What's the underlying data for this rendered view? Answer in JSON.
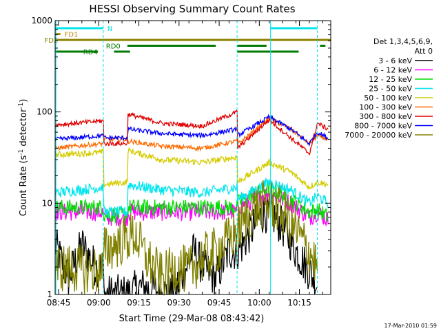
{
  "chart_data": {
    "type": "line",
    "title": "HESSI Observing Summary Count Rates",
    "xlabel": "Start Time (29-Mar-08 08:43:42)",
    "ylabel_main": "Count Rate (s",
    "ylabel_sup1": "-1",
    "ylabel_mid": " detector",
    "ylabel_sup2": "-1",
    "ylabel_end": ")",
    "footer": "17-Mar-2010 01:59",
    "legend_header_1": "Det 1,3,4,5,6,9,",
    "legend_header_2": "Att 0",
    "y_scale": "log",
    "ylim": [
      1,
      1000
    ],
    "xlim_minutes": [
      0,
      103
    ],
    "x_ticks": [
      {
        "m": 1.3,
        "label": "08:45"
      },
      {
        "m": 16.3,
        "label": "09:00"
      },
      {
        "m": 31.3,
        "label": "09:15"
      },
      {
        "m": 46.3,
        "label": "09:30"
      },
      {
        "m": 61.3,
        "label": "09:45"
      },
      {
        "m": 76.3,
        "label": "10:00"
      },
      {
        "m": 91.3,
        "label": "10:15"
      }
    ],
    "y_ticks": [
      {
        "v": 1,
        "label": "1"
      },
      {
        "v": 10,
        "label": "10"
      },
      {
        "v": 100,
        "label": "100"
      },
      {
        "v": 1000,
        "label": "1000"
      }
    ],
    "grid": false,
    "vertical_markers": [
      {
        "m": 0.3,
        "style": "solid"
      },
      {
        "m": 18.0,
        "style": "dashed"
      },
      {
        "m": 68.0,
        "style": "dashed"
      },
      {
        "m": 80.5,
        "style": "solid"
      },
      {
        "m": 98.0,
        "style": "dashed"
      }
    ],
    "flags": [
      {
        "label": "N",
        "label_m": 19.5,
        "level": 0,
        "color": "#00e5ee",
        "segments": [
          [
            0,
            18
          ],
          [
            80.5,
            98
          ]
        ]
      },
      {
        "label": "FD1",
        "label_m": 3.5,
        "level": 1,
        "color": "#b8860b",
        "segments": [
          [
            0,
            2
          ]
        ]
      },
      {
        "label": "FD2",
        "label_m": -4.0,
        "level": 2,
        "color": "#8b8000",
        "segments": [
          [
            0,
            103
          ]
        ]
      },
      {
        "label": "RD0",
        "label_m": 19.0,
        "level": 3,
        "color": "#007a00",
        "segments": [
          [
            27,
            60
          ],
          [
            68,
            79
          ],
          [
            99,
            101
          ]
        ]
      },
      {
        "label": "RD4",
        "label_m": 10.5,
        "level": 4,
        "color": "#007a00",
        "segments": [
          [
            0,
            16
          ],
          [
            22,
            28
          ],
          [
            68,
            91
          ]
        ]
      }
    ],
    "series": [
      {
        "name": "3 - 6 keV",
        "color": "#000000"
      },
      {
        "name": "6 - 12 keV",
        "color": "#ff00ff"
      },
      {
        "name": "12 - 25 keV",
        "color": "#00dd00"
      },
      {
        "name": "25 - 50 keV",
        "color": "#00e5ee"
      },
      {
        "name": "50 - 100 keV",
        "color": "#d4cc00"
      },
      {
        "name": "100 - 300 keV",
        "color": "#ff6a00"
      },
      {
        "name": "300 - 800 keV",
        "color": "#e00000"
      },
      {
        "name": "800 - 7000 keV",
        "color": "#0000ff"
      },
      {
        "name": "7000 - 20000 keV",
        "color": "#808000"
      }
    ],
    "curves": [
      {
        "color": "#000000",
        "noise": 0.45,
        "points": [
          [
            0,
            3.5
          ],
          [
            5,
            1.5
          ],
          [
            10,
            3.5
          ],
          [
            15,
            2
          ],
          [
            18,
            2
          ],
          [
            18.1,
            1
          ],
          [
            27,
            1
          ],
          [
            32,
            1.2
          ],
          [
            44,
            1
          ],
          [
            52,
            3
          ],
          [
            55,
            2
          ],
          [
            60,
            1.5
          ],
          [
            65,
            3
          ],
          [
            68,
            3
          ],
          [
            70,
            3.5
          ],
          [
            75,
            6
          ],
          [
            78,
            8
          ],
          [
            82,
            7
          ],
          [
            86,
            5
          ],
          [
            90,
            3
          ],
          [
            94,
            2
          ],
          [
            98,
            1.3
          ]
        ]
      },
      {
        "color": "#ff00ff",
        "noise": 0.2,
        "points": [
          [
            0,
            8
          ],
          [
            18,
            8
          ],
          [
            18.1,
            7
          ],
          [
            27,
            7
          ],
          [
            27.1,
            8
          ],
          [
            60,
            8
          ],
          [
            68,
            8
          ],
          [
            68.1,
            9
          ],
          [
            80,
            13
          ],
          [
            88,
            10
          ],
          [
            95,
            7
          ],
          [
            98,
            8
          ],
          [
            102,
            6.5
          ]
        ]
      },
      {
        "color": "#00dd00",
        "noise": 0.18,
        "points": [
          [
            0,
            9
          ],
          [
            18,
            9
          ],
          [
            18.1,
            7.5
          ],
          [
            27,
            7.5
          ],
          [
            27.1,
            9
          ],
          [
            60,
            9
          ],
          [
            68,
            9
          ],
          [
            68.1,
            10
          ],
          [
            80,
            15
          ],
          [
            88,
            11
          ],
          [
            95,
            8
          ],
          [
            98,
            8.5
          ],
          [
            102,
            7
          ]
        ]
      },
      {
        "color": "#00e5ee",
        "noise": 0.12,
        "points": [
          [
            0,
            13
          ],
          [
            18,
            15
          ],
          [
            18.1,
            8
          ],
          [
            27,
            8
          ],
          [
            27.1,
            16
          ],
          [
            40,
            14
          ],
          [
            55,
            13
          ],
          [
            68,
            15
          ],
          [
            68.1,
            11
          ],
          [
            80,
            17
          ],
          [
            88,
            14
          ],
          [
            95,
            10
          ],
          [
            98,
            12
          ],
          [
            102,
            10
          ]
        ]
      },
      {
        "color": "#d4cc00",
        "noise": 0.07,
        "points": [
          [
            0,
            34
          ],
          [
            18,
            36
          ],
          [
            18.1,
            16
          ],
          [
            27,
            17
          ],
          [
            27.1,
            38
          ],
          [
            40,
            30
          ],
          [
            55,
            28
          ],
          [
            68,
            32
          ],
          [
            68.1,
            17
          ],
          [
            80,
            28
          ],
          [
            88,
            22
          ],
          [
            95,
            15
          ],
          [
            98,
            17
          ],
          [
            102,
            16
          ]
        ]
      },
      {
        "color": "#ff6a00",
        "noise": 0.05,
        "points": [
          [
            0,
            40
          ],
          [
            18,
            45
          ],
          [
            18.1,
            50
          ],
          [
            27,
            50
          ],
          [
            27.1,
            48
          ],
          [
            40,
            42
          ],
          [
            55,
            40
          ],
          [
            68,
            48
          ],
          [
            68.1,
            44
          ],
          [
            80,
            85
          ],
          [
            88,
            65
          ],
          [
            95,
            45
          ],
          [
            98,
            55
          ],
          [
            102,
            50
          ]
        ]
      },
      {
        "color": "#0000ff",
        "noise": 0.05,
        "points": [
          [
            0,
            50
          ],
          [
            18,
            55
          ],
          [
            18.1,
            52
          ],
          [
            27,
            52
          ],
          [
            27.1,
            65
          ],
          [
            40,
            58
          ],
          [
            55,
            55
          ],
          [
            68,
            65
          ],
          [
            68.1,
            55
          ],
          [
            80,
            88
          ],
          [
            88,
            65
          ],
          [
            95,
            45
          ],
          [
            98,
            60
          ],
          [
            102,
            52
          ]
        ]
      },
      {
        "color": "#e00000",
        "noise": 0.05,
        "points": [
          [
            0,
            72
          ],
          [
            18,
            80
          ],
          [
            18.1,
            45
          ],
          [
            27,
            45
          ],
          [
            27.1,
            95
          ],
          [
            40,
            75
          ],
          [
            55,
            70
          ],
          [
            68,
            100
          ],
          [
            68.1,
            40
          ],
          [
            80,
            82
          ],
          [
            88,
            52
          ],
          [
            95,
            35
          ],
          [
            98,
            75
          ],
          [
            102,
            65
          ]
        ]
      },
      {
        "color": "#808000",
        "noise": 0.55,
        "points": [
          [
            0,
            2
          ],
          [
            18,
            1.8
          ],
          [
            18.1,
            3
          ],
          [
            26,
            4
          ],
          [
            30,
            4.5
          ],
          [
            34,
            2.5
          ],
          [
            40,
            1.5
          ],
          [
            45,
            2
          ],
          [
            50,
            1.8
          ],
          [
            55,
            2.5
          ],
          [
            60,
            3
          ],
          [
            65,
            4
          ],
          [
            68,
            5
          ],
          [
            70,
            6
          ],
          [
            75,
            9
          ],
          [
            80,
            10
          ],
          [
            85,
            8
          ],
          [
            90,
            5
          ],
          [
            95,
            3
          ],
          [
            98,
            2
          ]
        ]
      }
    ]
  }
}
